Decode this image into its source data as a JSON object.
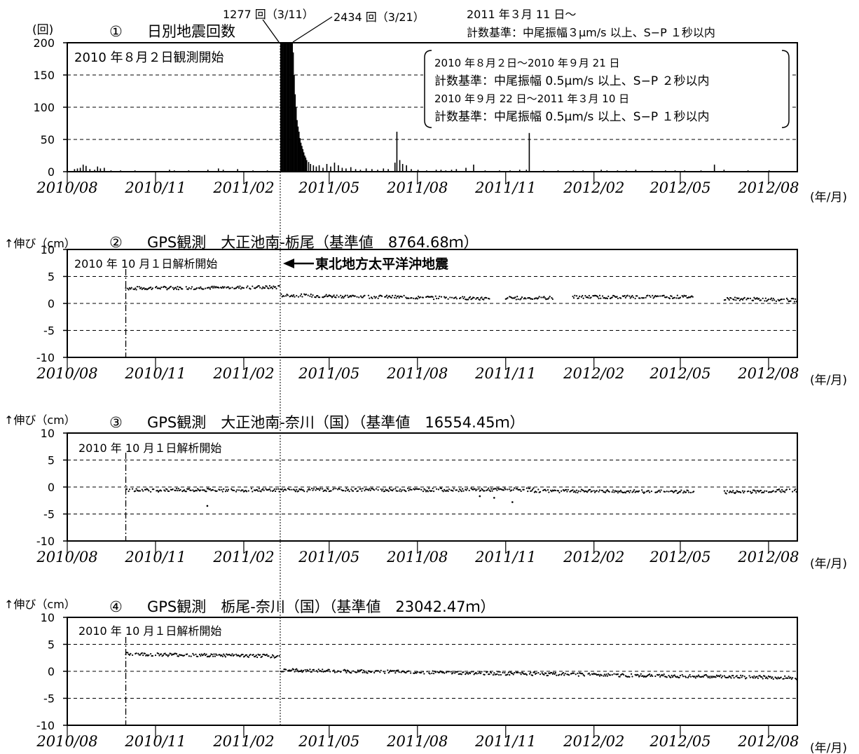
{
  "chart_data": [
    {
      "type": "bar",
      "panel_no": "①",
      "title": "日別地震回数",
      "yunit": "(回)",
      "xunit": "(年/月)",
      "ylim": [
        0,
        200
      ],
      "yticks": [
        "0",
        "50",
        "100",
        "150",
        "200"
      ],
      "xticks": [
        "2010/08",
        "2010/11",
        "2011/02",
        "2011/05",
        "2011/08",
        "2011/11",
        "2012/02",
        "2012/05",
        "2012/08"
      ],
      "start_note": "2010 年８月２日観測開始",
      "peak_label_1": "1277 回（3/11）",
      "peak_label_2": "2434 回（3/21）",
      "criteria_new_1": "2011 年３月 11 日～",
      "criteria_new_2": "計数基準：中尾振幅３μm/s 以上、S−P １秒以内",
      "legend_lines": [
        "2010 年８月２日～2010 年９月 21 日",
        "計数基準：中尾振幅 0.5μm/s 以上、S−P ２秒以内",
        "2010 年９月 22 日～2011 年３月 10 日",
        "計数基準：中尾振幅 0.5μm/s 以上、S−P １秒以内"
      ],
      "x_start": "2010-08-01",
      "x_end": "2012-08-31",
      "bars": [
        [
          "2010-08-08",
          4
        ],
        [
          "2010-08-11",
          5
        ],
        [
          "2010-08-14",
          6
        ],
        [
          "2010-08-17",
          11
        ],
        [
          "2010-08-20",
          9
        ],
        [
          "2010-08-24",
          4
        ],
        [
          "2010-08-29",
          3
        ],
        [
          "2010-09-01",
          8
        ],
        [
          "2010-09-04",
          5
        ],
        [
          "2010-09-08",
          6
        ],
        [
          "2010-09-15",
          2
        ],
        [
          "2010-09-25",
          2
        ],
        [
          "2010-10-10",
          2
        ],
        [
          "2010-10-25",
          1
        ],
        [
          "2010-11-15",
          3
        ],
        [
          "2010-11-20",
          2
        ],
        [
          "2010-12-05",
          2
        ],
        [
          "2010-12-25",
          3
        ],
        [
          "2011-01-05",
          5
        ],
        [
          "2011-01-10",
          3
        ],
        [
          "2011-01-25",
          4
        ],
        [
          "2011-02-10",
          2
        ],
        [
          "2011-02-25",
          2
        ],
        [
          "2011-03-11",
          200
        ],
        [
          "2011-03-12",
          200
        ],
        [
          "2011-03-13",
          200
        ],
        [
          "2011-03-14",
          200
        ],
        [
          "2011-03-15",
          200
        ],
        [
          "2011-03-16",
          200
        ],
        [
          "2011-03-17",
          200
        ],
        [
          "2011-03-18",
          200
        ],
        [
          "2011-03-19",
          200
        ],
        [
          "2011-03-20",
          200
        ],
        [
          "2011-03-21",
          200
        ],
        [
          "2011-03-22",
          200
        ],
        [
          "2011-03-23",
          200
        ],
        [
          "2011-03-24",
          185
        ],
        [
          "2011-03-25",
          150
        ],
        [
          "2011-03-26",
          120
        ],
        [
          "2011-03-27",
          100
        ],
        [
          "2011-03-28",
          80
        ],
        [
          "2011-03-29",
          70
        ],
        [
          "2011-03-30",
          62
        ],
        [
          "2011-03-31",
          52
        ],
        [
          "2011-04-01",
          45
        ],
        [
          "2011-04-02",
          40
        ],
        [
          "2011-04-03",
          35
        ],
        [
          "2011-04-04",
          30
        ],
        [
          "2011-04-05",
          25
        ],
        [
          "2011-04-06",
          22
        ],
        [
          "2011-04-07",
          18
        ],
        [
          "2011-04-09",
          15
        ],
        [
          "2011-04-11",
          12
        ],
        [
          "2011-04-14",
          10
        ],
        [
          "2011-04-17",
          8
        ],
        [
          "2011-04-20",
          10
        ],
        [
          "2011-04-24",
          6
        ],
        [
          "2011-04-28",
          12
        ],
        [
          "2011-05-02",
          8
        ],
        [
          "2011-05-06",
          14
        ],
        [
          "2011-05-10",
          10
        ],
        [
          "2011-05-14",
          6
        ],
        [
          "2011-05-18",
          5
        ],
        [
          "2011-05-23",
          7
        ],
        [
          "2011-05-28",
          4
        ],
        [
          "2011-06-02",
          3
        ],
        [
          "2011-06-08",
          5
        ],
        [
          "2011-06-14",
          4
        ],
        [
          "2011-06-20",
          3
        ],
        [
          "2011-06-26",
          5
        ],
        [
          "2011-07-01",
          4
        ],
        [
          "2011-07-08",
          14
        ],
        [
          "2011-07-10",
          62
        ],
        [
          "2011-07-13",
          18
        ],
        [
          "2011-07-16",
          12
        ],
        [
          "2011-07-20",
          10
        ],
        [
          "2011-07-25",
          4
        ],
        [
          "2011-08-01",
          3
        ],
        [
          "2011-08-10",
          2
        ],
        [
          "2011-08-20",
          3
        ],
        [
          "2011-08-25",
          3
        ],
        [
          "2011-08-30",
          2
        ],
        [
          "2011-09-05",
          3
        ],
        [
          "2011-09-10",
          4
        ],
        [
          "2011-09-20",
          6
        ],
        [
          "2011-09-28",
          11
        ],
        [
          "2011-10-10",
          2
        ],
        [
          "2011-10-25",
          2
        ],
        [
          "2011-11-05",
          2
        ],
        [
          "2011-11-15",
          3
        ],
        [
          "2011-11-22",
          3
        ],
        [
          "2011-11-25",
          60
        ],
        [
          "2011-12-10",
          2
        ],
        [
          "2011-12-25",
          2
        ],
        [
          "2012-01-10",
          2
        ],
        [
          "2012-01-20",
          2
        ],
        [
          "2012-02-08",
          3
        ],
        [
          "2012-02-14",
          2
        ],
        [
          "2012-02-25",
          2
        ],
        [
          "2012-03-05",
          2
        ],
        [
          "2012-03-15",
          3
        ],
        [
          "2012-04-01",
          2
        ],
        [
          "2012-04-15",
          2
        ],
        [
          "2012-04-25",
          2
        ],
        [
          "2012-05-05",
          2
        ],
        [
          "2012-05-22",
          2
        ],
        [
          "2012-06-05",
          11
        ],
        [
          "2012-06-15",
          3
        ],
        [
          "2012-07-10",
          2
        ],
        [
          "2012-08-01",
          2
        ],
        [
          "2012-08-20",
          1
        ]
      ]
    },
    {
      "type": "scatter",
      "panel_no": "②",
      "title": "GPS観測　大正池南-栃尾（基準値　8764.68ｍ）",
      "yunit": "↑伸び（cm）",
      "xunit": "(年/月)",
      "ylim": [
        -10,
        10
      ],
      "yticks": [
        "-10",
        "-5",
        "0",
        "5",
        "10"
      ],
      "xticks": [
        "2010/08",
        "2010/11",
        "2011/02",
        "2011/05",
        "2011/08",
        "2011/11",
        "2012/02",
        "2012/05",
        "2012/08"
      ],
      "start_note": "2010 年 10 月１日解析開始",
      "annotation": "東北地方太平洋沖地震",
      "x_start": "2010-08-01",
      "x_end": "2012-08-31",
      "analysis_start": "2010-10-01",
      "series": [
        {
          "from": "2010-10-01",
          "to": "2011-03-10",
          "start_value": 2.8,
          "end_value": 3.0
        },
        {
          "from": "2011-03-12",
          "to": "2011-10-15",
          "start_value": 1.5,
          "end_value": 0.9
        },
        {
          "from": "2011-11-01",
          "to": "2011-12-20",
          "start_value": 1.0,
          "end_value": 1.0
        },
        {
          "from": "2012-01-10",
          "to": "2012-05-15",
          "start_value": 1.2,
          "end_value": 1.2
        },
        {
          "from": "2012-06-15",
          "to": "2012-08-31",
          "start_value": 0.9,
          "end_value": 0.6
        }
      ]
    },
    {
      "type": "scatter",
      "panel_no": "③",
      "title": "GPS観測　大正池南-奈川（国）（基準値　16554.45ｍ）",
      "yunit": "↑伸び（cm）",
      "xunit": "(年/月)",
      "ylim": [
        -10,
        10
      ],
      "yticks": [
        "-10",
        "-5",
        "0",
        "5",
        "10"
      ],
      "xticks": [
        "2010/08",
        "2010/11",
        "2011/02",
        "2011/05",
        "2011/08",
        "2011/11",
        "2012/02",
        "2012/05",
        "2012/08"
      ],
      "start_note": "2010 年 10 月１日解析開始",
      "x_start": "2010-08-01",
      "x_end": "2012-08-31",
      "analysis_start": "2010-10-01",
      "series": [
        {
          "from": "2010-10-01",
          "to": "2011-11-30",
          "start_value": -0.6,
          "end_value": -0.5
        },
        {
          "from": "2011-12-01",
          "to": "2012-05-15",
          "start_value": -0.7,
          "end_value": -0.9
        },
        {
          "from": "2012-06-15",
          "to": "2012-08-31",
          "start_value": -1.0,
          "end_value": -0.6
        }
      ],
      "outliers": [
        [
          "2010-12-25",
          -3.5
        ],
        [
          "2011-10-20",
          -2.0
        ],
        [
          "2011-11-08",
          -2.8
        ],
        [
          "2011-10-05",
          -1.7
        ]
      ]
    },
    {
      "type": "scatter",
      "panel_no": "④",
      "title": "GPS観測　栃尾-奈川（国）（基準値　23042.47ｍ）",
      "yunit": "↑伸び（cm）",
      "xunit": "(年/月)",
      "ylim": [
        -10,
        10
      ],
      "yticks": [
        "-10",
        "-5",
        "0",
        "5",
        "10"
      ],
      "xticks": [
        "2010/08",
        "2010/11",
        "2011/02",
        "2011/05",
        "2011/08",
        "2011/11",
        "2012/02",
        "2012/05",
        "2012/08"
      ],
      "start_note": "2010 年 10 月１日解析開始",
      "x_start": "2010-08-01",
      "x_end": "2012-08-31",
      "analysis_start": "2010-10-01",
      "series": [
        {
          "from": "2010-10-01",
          "to": "2011-03-10",
          "start_value": 3.2,
          "end_value": 2.8
        },
        {
          "from": "2011-03-12",
          "to": "2012-08-31",
          "start_value": 0.2,
          "end_value": -1.2
        }
      ]
    }
  ],
  "event_date": "2011-03-11"
}
